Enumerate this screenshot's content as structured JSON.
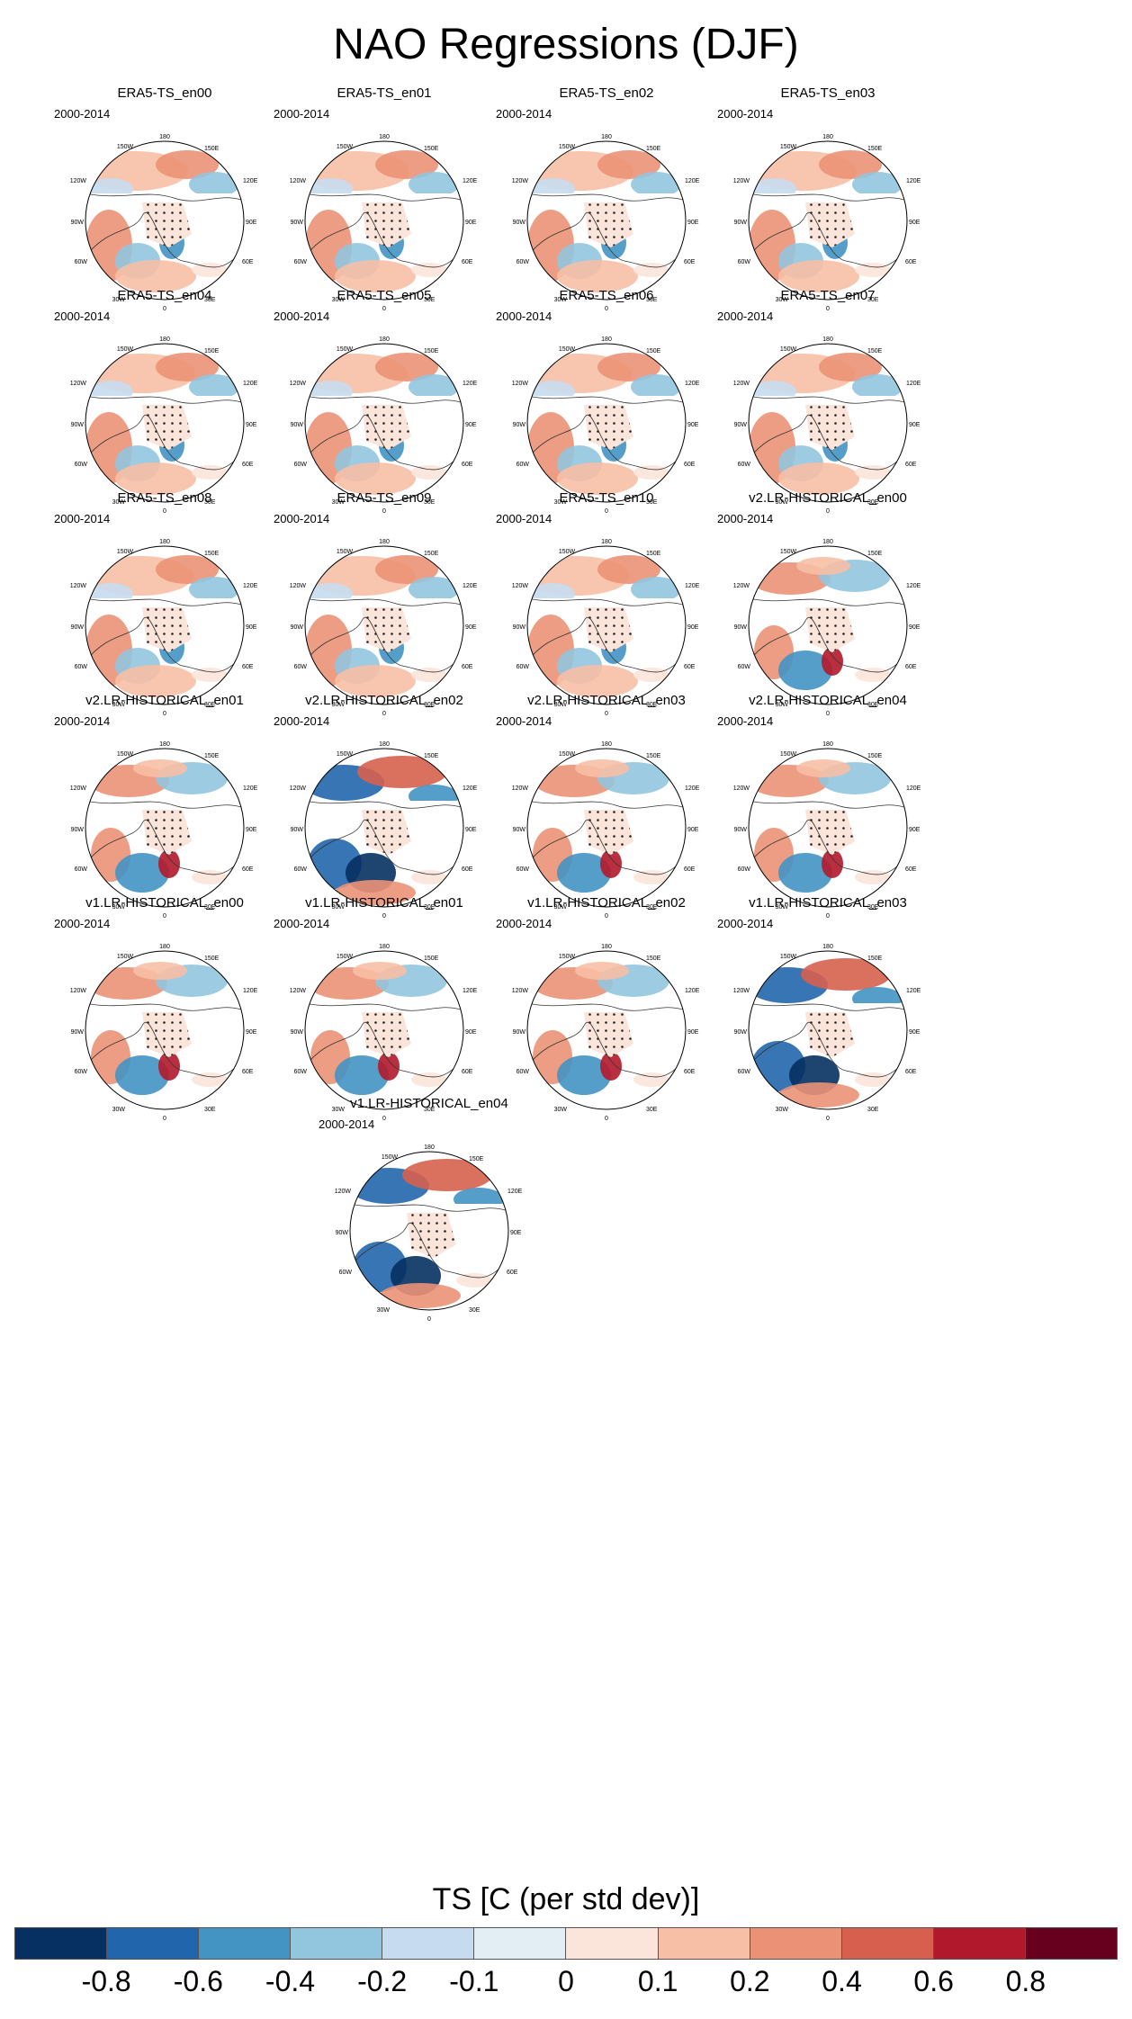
{
  "title": "NAO Regressions (DJF)",
  "period": "2000-2014",
  "map_labels": {
    "lon_180": "180",
    "lon_150w": "150W",
    "lon_150e": "150E",
    "lon_120w": "120W",
    "lon_120e": "120E",
    "lon_90w": "90W",
    "lon_90e": "90E",
    "lon_60w": "60W",
    "lon_60e": "60E",
    "lon_30w": "30W",
    "lon_30e": "30E",
    "lon_0": "0"
  },
  "panels": [
    {
      "name": "ERA5-TS_en00",
      "pattern": "era5"
    },
    {
      "name": "ERA5-TS_en01",
      "pattern": "era5"
    },
    {
      "name": "ERA5-TS_en02",
      "pattern": "era5"
    },
    {
      "name": "ERA5-TS_en03",
      "pattern": "era5"
    },
    {
      "name": "ERA5-TS_en04",
      "pattern": "era5"
    },
    {
      "name": "ERA5-TS_en05",
      "pattern": "era5"
    },
    {
      "name": "ERA5-TS_en06",
      "pattern": "era5"
    },
    {
      "name": "ERA5-TS_en07",
      "pattern": "era5"
    },
    {
      "name": "ERA5-TS_en08",
      "pattern": "era5"
    },
    {
      "name": "ERA5-TS_en09",
      "pattern": "era5"
    },
    {
      "name": "ERA5-TS_en10",
      "pattern": "era5"
    },
    {
      "name": "v2.LR-HISTORICAL_en00",
      "pattern": "model"
    },
    {
      "name": "v2.LR-HISTORICAL_en01",
      "pattern": "model"
    },
    {
      "name": "v2.LR-HISTORICAL_en02",
      "pattern": "model-strong"
    },
    {
      "name": "v2.LR-HISTORICAL_en03",
      "pattern": "model"
    },
    {
      "name": "v2.LR-HISTORICAL_en04",
      "pattern": "model"
    },
    {
      "name": "v1.LR-HISTORICAL_en00",
      "pattern": "model"
    },
    {
      "name": "v1.LR-HISTORICAL_en01",
      "pattern": "model"
    },
    {
      "name": "v1.LR-HISTORICAL_en02",
      "pattern": "model"
    },
    {
      "name": "v1.LR-HISTORICAL_en03",
      "pattern": "model-strong"
    },
    {
      "name": "v1.LR-HISTORICAL_en04",
      "pattern": "model-strong"
    }
  ],
  "colorbar": {
    "title": "TS [C (per std dev)]",
    "tick_labels": [
      "-0.8",
      "-0.6",
      "-0.4",
      "-0.2",
      "-0.1",
      "0",
      "0.1",
      "0.2",
      "0.4",
      "0.6",
      "0.8"
    ],
    "colors": [
      "#053061",
      "#2166ac",
      "#4393c3",
      "#92c5de",
      "#c6dbef",
      "#e3edf4",
      "#fbe4da",
      "#f7bfa5",
      "#eb9276",
      "#d6604d",
      "#b2182b",
      "#67001f"
    ]
  }
}
